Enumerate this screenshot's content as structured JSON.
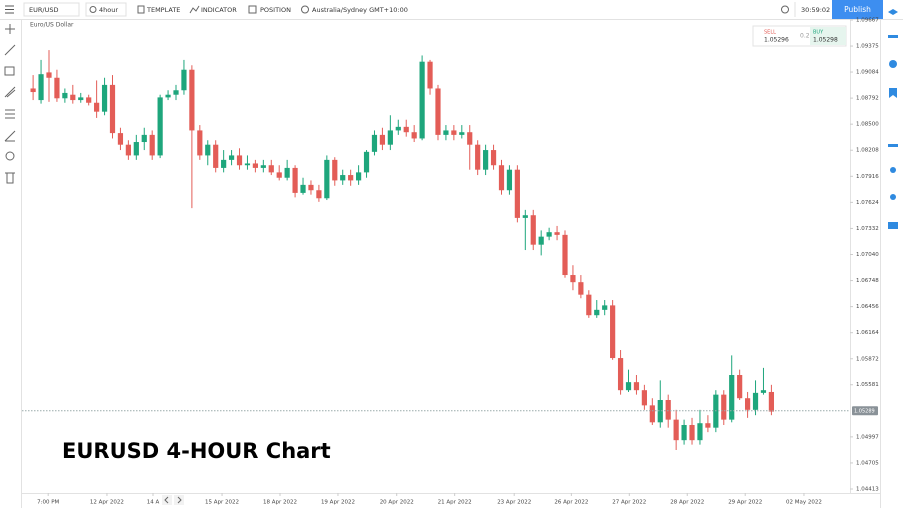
{
  "toolbar": {
    "symbol": "EUR/USD",
    "interval": "4hour",
    "template": "TEMPLATE",
    "indicator": "INDICATOR",
    "position": "POSITION",
    "timezone": "Australia/Sydney GMT+10:00",
    "clock": "30:59:02",
    "publish": "Publish"
  },
  "trade_panel": {
    "sell_label": "SELL",
    "sell_price": "1.05296",
    "spread": "0.2",
    "buy_label": "BUY",
    "buy_price": "1.05298"
  },
  "overlay_title": "EURUSD 4-HOUR Chart",
  "chart_data": {
    "type": "candlestick",
    "title": "Euro/US Dollar",
    "up_color": "#1ea67c",
    "down_color": "#e35d57",
    "open": [
      1.089,
      1.0877,
      1.0908,
      1.0902,
      1.0879,
      1.0883,
      1.0877,
      1.088,
      1.0874,
      1.0864,
      1.0894,
      1.084,
      1.0827,
      1.0815,
      1.083,
      1.0838,
      1.0815,
      1.088,
      1.0883,
      1.0888,
      1.0911,
      1.0843,
      1.0815,
      1.0827,
      1.0801,
      1.081,
      1.0815,
      1.0804,
      1.0806,
      1.0801,
      1.0804,
      1.0796,
      1.079,
      1.0801,
      1.0773,
      1.0782,
      1.0776,
      1.0767,
      1.081,
      1.0787,
      1.0793,
      1.0787,
      1.0796,
      1.0819,
      1.0838,
      1.0827,
      1.0843,
      1.0847,
      1.0841,
      1.0834,
      1.092,
      1.089,
      1.0838,
      1.0843,
      1.0838,
      1.0841,
      1.0827,
      1.0799,
      1.0821,
      1.0804,
      1.0776,
      1.0799,
      1.0745,
      1.0748,
      1.0715,
      1.0724,
      1.0729,
      1.0726,
      1.0681,
      1.0673,
      1.0659,
      1.0636,
      1.0642,
      1.0647,
      1.0588,
      1.0552,
      1.0561,
      1.0552,
      1.0535,
      1.0516,
      1.0541,
      1.0519,
      1.0496,
      1.0513,
      1.0496,
      1.0515,
      1.051,
      1.0547,
      1.0519,
      1.0569,
      1.0543,
      1.053,
      1.0549,
      1.055
    ],
    "high": [
      1.0905,
      1.0922,
      1.0933,
      1.0911,
      1.089,
      1.0894,
      1.0885,
      1.0883,
      1.0899,
      1.0902,
      1.0905,
      1.0846,
      1.0832,
      1.0838,
      1.0846,
      1.0843,
      1.0883,
      1.0888,
      1.0894,
      1.0922,
      1.0916,
      1.0849,
      1.0832,
      1.0832,
      1.0821,
      1.0821,
      1.0823,
      1.0815,
      1.081,
      1.081,
      1.081,
      1.0804,
      1.081,
      1.0804,
      1.079,
      1.0787,
      1.0782,
      1.0815,
      1.0813,
      1.0799,
      1.0799,
      1.0804,
      1.0821,
      1.0843,
      1.0846,
      1.086,
      1.0855,
      1.0855,
      1.0849,
      1.0927,
      1.0922,
      1.0894,
      1.0849,
      1.0849,
      1.0849,
      1.0849,
      1.0832,
      1.0827,
      1.0827,
      1.081,
      1.0804,
      1.0804,
      1.0754,
      1.0754,
      1.0731,
      1.0734,
      1.0736,
      1.0731,
      1.0692,
      1.0681,
      1.0664,
      1.0653,
      1.0653,
      1.0653,
      1.0597,
      1.0575,
      1.0569,
      1.0558,
      1.0543,
      1.0563,
      1.0547,
      1.053,
      1.0519,
      1.0521,
      1.053,
      1.0524,
      1.0552,
      1.0552,
      1.0591,
      1.0575,
      1.055,
      1.0563,
      1.0577,
      1.0558
    ],
    "low": [
      1.0877,
      1.0873,
      1.0875,
      1.0875,
      1.0874,
      1.0873,
      1.0874,
      1.0871,
      1.0857,
      1.086,
      1.0834,
      1.0821,
      1.081,
      1.081,
      1.0821,
      1.081,
      1.0812,
      1.0877,
      1.0877,
      1.0883,
      1.0756,
      1.081,
      1.0804,
      1.0796,
      1.0796,
      1.0804,
      1.0799,
      1.0799,
      1.0796,
      1.0796,
      1.0793,
      1.0787,
      1.0787,
      1.0768,
      1.0771,
      1.0771,
      1.0763,
      1.0765,
      1.0781,
      1.0782,
      1.0781,
      1.0782,
      1.079,
      1.0815,
      1.0821,
      1.0821,
      1.0838,
      1.0836,
      1.083,
      1.0832,
      1.0883,
      1.0832,
      1.0832,
      1.0832,
      1.0834,
      1.0799,
      1.0793,
      1.0793,
      1.0799,
      1.0771,
      1.0771,
      1.074,
      1.0709,
      1.0709,
      1.0703,
      1.072,
      1.072,
      1.0678,
      1.0664,
      1.0655,
      1.0633,
      1.0633,
      1.0636,
      1.0586,
      1.0547,
      1.055,
      1.0547,
      1.053,
      1.0513,
      1.051,
      1.051,
      1.0485,
      1.0491,
      1.0491,
      1.0491,
      1.0505,
      1.0505,
      1.0513,
      1.0516,
      1.0541,
      1.0521,
      1.0524,
      1.0547,
      1.0524
    ],
    "close": [
      1.0886,
      1.0906,
      1.0902,
      1.0879,
      1.0885,
      1.0877,
      1.088,
      1.0874,
      1.0864,
      1.0894,
      1.084,
      1.0827,
      1.0815,
      1.083,
      1.0838,
      1.0815,
      1.088,
      1.0883,
      1.0888,
      1.0911,
      1.0843,
      1.0815,
      1.0827,
      1.0801,
      1.081,
      1.0815,
      1.0804,
      1.0806,
      1.0801,
      1.0804,
      1.0796,
      1.079,
      1.0801,
      1.0773,
      1.0782,
      1.0776,
      1.0767,
      1.081,
      1.0787,
      1.0793,
      1.0787,
      1.0796,
      1.0819,
      1.0838,
      1.0827,
      1.0843,
      1.0847,
      1.0841,
      1.0834,
      1.092,
      1.089,
      1.0838,
      1.0843,
      1.0838,
      1.0841,
      1.0827,
      1.0799,
      1.0821,
      1.0804,
      1.0776,
      1.0799,
      1.0745,
      1.0748,
      1.0715,
      1.0724,
      1.0729,
      1.0726,
      1.0681,
      1.0673,
      1.0659,
      1.0636,
      1.0642,
      1.0647,
      1.0588,
      1.0552,
      1.0561,
      1.0552,
      1.0535,
      1.0516,
      1.0541,
      1.0519,
      1.0496,
      1.0513,
      1.0496,
      1.0515,
      1.051,
      1.0547,
      1.0519,
      1.0569,
      1.0543,
      1.053,
      1.0549,
      1.0552,
      1.0528
    ],
    "current_price": {
      "value": 1.05289,
      "label": "1.05289"
    },
    "xlim": [
      -1.4,
      102.9
    ],
    "xticks": [
      {
        "value": 1.9,
        "label": "7:00 PM"
      },
      {
        "value": 9.3,
        "label": "12 Apr 2022"
      },
      {
        "value": 15.1,
        "label": "14 A"
      },
      {
        "value": 23.8,
        "label": "15 Apr 2022"
      },
      {
        "value": 31.1,
        "label": "18 Apr 2022"
      },
      {
        "value": 38.4,
        "label": "19 Apr 2022"
      },
      {
        "value": 45.8,
        "label": "20 Apr 2022"
      },
      {
        "value": 53.1,
        "label": "21 Apr 2022"
      },
      {
        "value": 60.6,
        "label": "23 Apr 2022"
      },
      {
        "value": 67.8,
        "label": "26 Apr 2022"
      },
      {
        "value": 75.1,
        "label": "27 Apr 2022"
      },
      {
        "value": 82.4,
        "label": "28 Apr 2022"
      },
      {
        "value": 89.7,
        "label": "29 Apr 2022"
      },
      {
        "value": 97.1,
        "label": "02 May 2022"
      }
    ],
    "ylim": [
      1.04413,
      1.09667
    ],
    "yticks": [
      1.09667,
      1.09375,
      1.09084,
      1.08792,
      {
        "value": 1.085,
        "label": "1.08500"
      },
      1.08208,
      1.07916,
      1.07624,
      1.07332,
      {
        "value": 1.0704,
        "label": "1.07040"
      },
      1.06748,
      1.06456,
      1.06164,
      1.05872,
      1.05581,
      1.04997,
      1.04705,
      1.04413
    ],
    "grid": false
  }
}
